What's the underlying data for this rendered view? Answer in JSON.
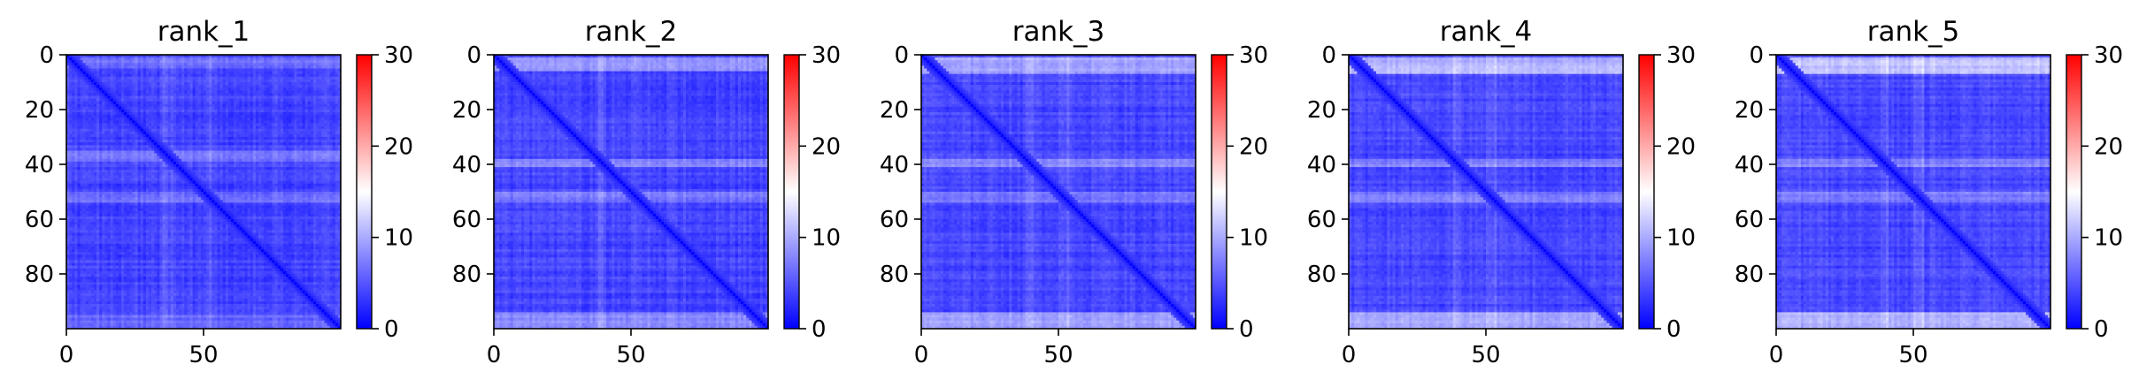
{
  "figure": {
    "background": "#ffffff"
  },
  "chart_data": [
    {
      "type": "heatmap",
      "title": "rank_1",
      "n": 100,
      "x_ticks": [
        {
          "value": 0,
          "label": "0"
        },
        {
          "value": 50,
          "label": "50"
        }
      ],
      "y_ticks": [
        {
          "value": 0,
          "label": "0"
        },
        {
          "value": 20,
          "label": "20"
        },
        {
          "value": 40,
          "label": "40"
        },
        {
          "value": 60,
          "label": "60"
        },
        {
          "value": 80,
          "label": "80"
        }
      ],
      "colorbar": {
        "min": 0,
        "max": 30,
        "ticks": [
          {
            "value": 0,
            "label": "0"
          },
          {
            "value": 10,
            "label": "10"
          },
          {
            "value": 20,
            "label": "20"
          },
          {
            "value": 30,
            "label": "30"
          }
        ],
        "colormap": "bwr"
      },
      "profile": {
        "diagonal": 1.2,
        "background": 4.0,
        "band_rows": [
          [
            35,
            38,
            3.0
          ],
          [
            50,
            53,
            2.5
          ]
        ],
        "top_rows": [
          [
            1,
            4,
            2.5
          ]
        ],
        "bottom_rows": [
          [
            95,
            99,
            2.0
          ]
        ]
      }
    },
    {
      "type": "heatmap",
      "title": "rank_2",
      "n": 100,
      "x_ticks": [
        {
          "value": 0,
          "label": "0"
        },
        {
          "value": 50,
          "label": "50"
        }
      ],
      "y_ticks": [
        {
          "value": 0,
          "label": "0"
        },
        {
          "value": 20,
          "label": "20"
        },
        {
          "value": 40,
          "label": "40"
        },
        {
          "value": 60,
          "label": "60"
        },
        {
          "value": 80,
          "label": "80"
        }
      ],
      "colorbar": {
        "min": 0,
        "max": 30,
        "ticks": [
          {
            "value": 0,
            "label": "0"
          },
          {
            "value": 10,
            "label": "10"
          },
          {
            "value": 20,
            "label": "20"
          },
          {
            "value": 30,
            "label": "30"
          }
        ],
        "colormap": "bwr"
      },
      "profile": {
        "diagonal": 1.2,
        "background": 4.0,
        "band_rows": [
          [
            38,
            40,
            3.5
          ],
          [
            50,
            53,
            3.0
          ]
        ],
        "top_rows": [
          [
            1,
            5,
            4.5
          ]
        ],
        "bottom_rows": [
          [
            94,
            99,
            4.0
          ]
        ]
      }
    },
    {
      "type": "heatmap",
      "title": "rank_3",
      "n": 100,
      "x_ticks": [
        {
          "value": 0,
          "label": "0"
        },
        {
          "value": 50,
          "label": "50"
        }
      ],
      "y_ticks": [
        {
          "value": 0,
          "label": "0"
        },
        {
          "value": 20,
          "label": "20"
        },
        {
          "value": 40,
          "label": "40"
        },
        {
          "value": 60,
          "label": "60"
        },
        {
          "value": 80,
          "label": "80"
        }
      ],
      "colorbar": {
        "min": 0,
        "max": 30,
        "ticks": [
          {
            "value": 0,
            "label": "0"
          },
          {
            "value": 10,
            "label": "10"
          },
          {
            "value": 20,
            "label": "20"
          },
          {
            "value": 30,
            "label": "30"
          }
        ],
        "colormap": "bwr"
      },
      "profile": {
        "diagonal": 1.2,
        "background": 4.2,
        "band_rows": [
          [
            38,
            40,
            3.5
          ],
          [
            50,
            53,
            3.0
          ]
        ],
        "top_rows": [
          [
            1,
            6,
            5.5
          ]
        ],
        "bottom_rows": [
          [
            94,
            99,
            5.0
          ]
        ]
      }
    },
    {
      "type": "heatmap",
      "title": "rank_4",
      "n": 100,
      "x_ticks": [
        {
          "value": 0,
          "label": "0"
        },
        {
          "value": 50,
          "label": "50"
        }
      ],
      "y_ticks": [
        {
          "value": 0,
          "label": "0"
        },
        {
          "value": 20,
          "label": "20"
        },
        {
          "value": 40,
          "label": "40"
        },
        {
          "value": 60,
          "label": "60"
        },
        {
          "value": 80,
          "label": "80"
        }
      ],
      "colorbar": {
        "min": 0,
        "max": 30,
        "ticks": [
          {
            "value": 0,
            "label": "0"
          },
          {
            "value": 10,
            "label": "10"
          },
          {
            "value": 20,
            "label": "20"
          },
          {
            "value": 30,
            "label": "30"
          }
        ],
        "colormap": "bwr"
      },
      "profile": {
        "diagonal": 1.2,
        "background": 4.2,
        "band_rows": [
          [
            38,
            40,
            3.5
          ],
          [
            50,
            53,
            3.0
          ]
        ],
        "top_rows": [
          [
            1,
            6,
            6.5
          ]
        ],
        "bottom_rows": [
          [
            94,
            99,
            5.5
          ]
        ]
      }
    },
    {
      "type": "heatmap",
      "title": "rank_5",
      "n": 100,
      "x_ticks": [
        {
          "value": 0,
          "label": "0"
        },
        {
          "value": 50,
          "label": "50"
        }
      ],
      "y_ticks": [
        {
          "value": 0,
          "label": "0"
        },
        {
          "value": 20,
          "label": "20"
        },
        {
          "value": 40,
          "label": "40"
        },
        {
          "value": 60,
          "label": "60"
        },
        {
          "value": 80,
          "label": "80"
        }
      ],
      "colorbar": {
        "min": 0,
        "max": 30,
        "ticks": [
          {
            "value": 0,
            "label": "0"
          },
          {
            "value": 10,
            "label": "10"
          },
          {
            "value": 20,
            "label": "20"
          },
          {
            "value": 30,
            "label": "30"
          }
        ],
        "colormap": "bwr"
      },
      "profile": {
        "diagonal": 1.2,
        "background": 4.3,
        "band_rows": [
          [
            38,
            40,
            3.5
          ],
          [
            50,
            53,
            3.0
          ]
        ],
        "top_rows": [
          [
            1,
            6,
            7.0
          ]
        ],
        "bottom_rows": [
          [
            94,
            99,
            6.0
          ]
        ]
      }
    }
  ]
}
